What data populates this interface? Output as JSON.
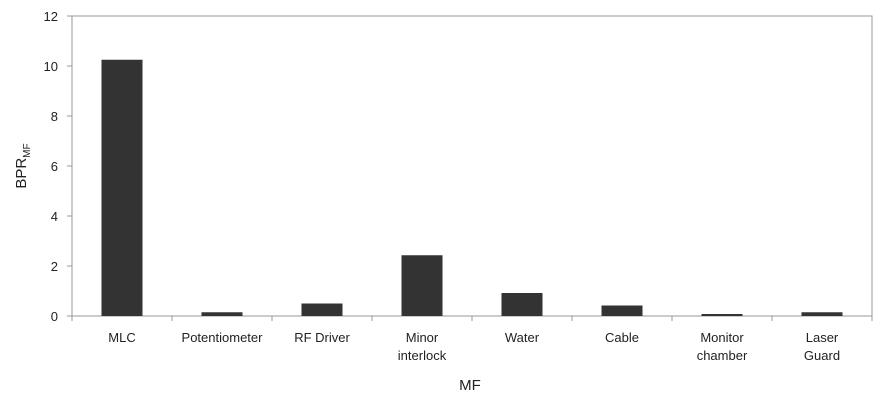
{
  "chart_data": {
    "type": "bar",
    "categories": [
      "MLC",
      "Potentiometer",
      "RF Driver",
      "Minor\ninterlock",
      "Water",
      "Cable",
      "Monitor\nchamber",
      "Laser\nGuard"
    ],
    "values": [
      10.25,
      0.15,
      0.5,
      2.43,
      0.92,
      0.42,
      0.08,
      0.15
    ],
    "xlabel": "MF",
    "ylabel_main": "BPR",
    "ylabel_sub": "MF",
    "ylim": [
      0,
      12
    ],
    "yticks": [
      0,
      2,
      4,
      6,
      8,
      10,
      12
    ],
    "grid": false,
    "legend": "none",
    "colors": {
      "bar": "#333333",
      "axis": "#999999",
      "text": "#222222"
    }
  }
}
